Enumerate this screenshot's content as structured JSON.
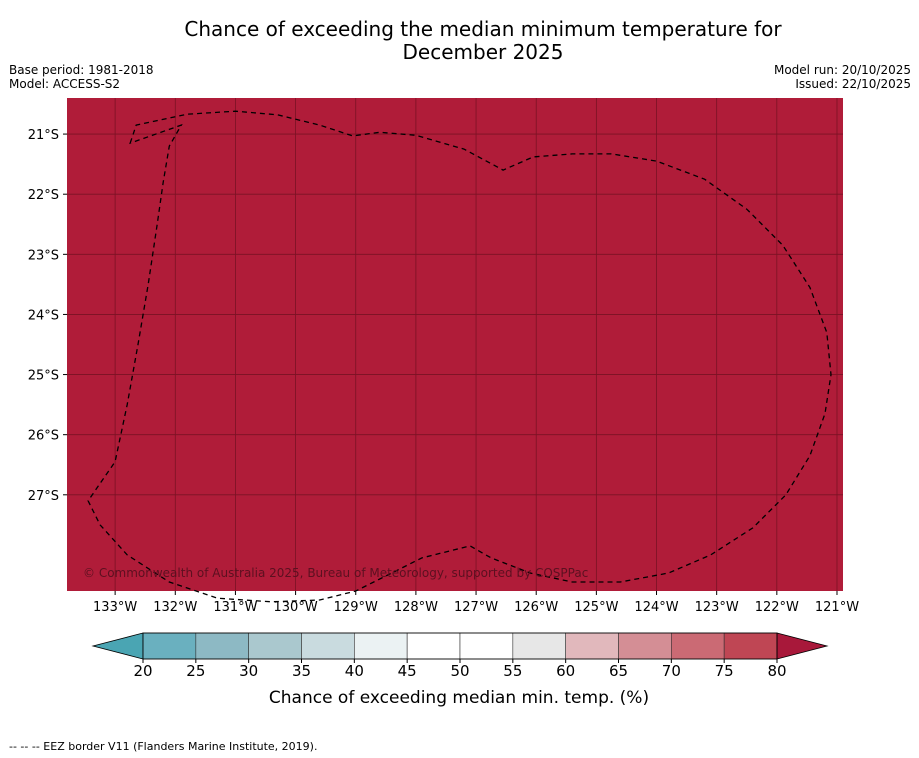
{
  "title_line1": "Chance of exceeding the median minimum temperature for",
  "title_line2": "December 2025",
  "base_period": "Base period: 1981-2018",
  "model": "Model: ACCESS-S2",
  "model_run": "Model run: 20/10/2025",
  "issued": "Issued: 22/10/2025",
  "copyright": "© Commonwealth of Australia 2025, Bureau of Meteorology, supported by COSPPac",
  "footer_note": "--  --  -- EEZ border V11 (Flanders Marine Institute, 2019).",
  "colors": {
    "map_fill": "#b01c39",
    "grid": "#7a1224",
    "scale": [
      "#6ab0bf",
      "#8db9c4",
      "#aac8ce",
      "#c9dbdf",
      "#ebf2f3",
      "#ffffff",
      "#ffffff",
      "#e7e7e7",
      "#e1b8bc",
      "#d48e95",
      "#cb6a74",
      "#bf4654"
    ],
    "low_arrow": "#4aa5b3",
    "high_arrow": "#a8183a"
  },
  "chart_data": {
    "type": "heatmap",
    "title": "Chance of exceeding the median minimum temperature for December 2025",
    "xlabel": "",
    "ylabel": "",
    "xlim": [
      -133.8,
      -120.9
    ],
    "ylim": [
      -28.6,
      -20.4
    ],
    "x_ticks": [
      -133,
      -132,
      -131,
      -130,
      -129,
      -128,
      -127,
      -126,
      -125,
      -124,
      -123,
      -122,
      -121
    ],
    "x_tick_labels": [
      "133°W",
      "132°W",
      "131°W",
      "130°W",
      "129°W",
      "128°W",
      "127°W",
      "126°W",
      "125°W",
      "124°W",
      "123°W",
      "122°W",
      "121°W"
    ],
    "y_ticks": [
      -21,
      -22,
      -23,
      -24,
      -25,
      -26,
      -27
    ],
    "y_tick_labels": [
      "21°S",
      "22°S",
      "23°S",
      "24°S",
      "25°S",
      "26°S",
      "27°S"
    ],
    "field_value_category": ">80",
    "eez_border": [
      [
        -132.75,
        -21.15
      ],
      [
        -132.65,
        -20.85
      ],
      [
        -131.8,
        -20.67
      ],
      [
        -131.0,
        -20.62
      ],
      [
        -130.3,
        -20.68
      ],
      [
        -129.6,
        -20.85
      ],
      [
        -129.05,
        -21.03
      ],
      [
        -128.6,
        -20.97
      ],
      [
        -128.0,
        -21.02
      ],
      [
        -127.2,
        -21.25
      ],
      [
        -126.55,
        -21.6
      ],
      [
        -126.05,
        -21.38
      ],
      [
        -125.4,
        -21.33
      ],
      [
        -124.75,
        -21.33
      ],
      [
        -124.0,
        -21.45
      ],
      [
        -123.2,
        -21.75
      ],
      [
        -122.5,
        -22.25
      ],
      [
        -121.9,
        -22.85
      ],
      [
        -121.45,
        -23.55
      ],
      [
        -121.17,
        -24.3
      ],
      [
        -121.1,
        -25.0
      ],
      [
        -121.2,
        -25.65
      ],
      [
        -121.45,
        -26.35
      ],
      [
        -121.85,
        -27.0
      ],
      [
        -122.4,
        -27.55
      ],
      [
        -123.1,
        -28.0
      ],
      [
        -123.8,
        -28.3
      ],
      [
        -124.6,
        -28.45
      ],
      [
        -125.4,
        -28.45
      ],
      [
        -126.1,
        -28.3
      ],
      [
        -126.75,
        -28.05
      ],
      [
        -127.1,
        -27.85
      ],
      [
        -127.9,
        -28.05
      ],
      [
        -128.5,
        -28.35
      ],
      [
        -129.0,
        -28.6
      ],
      [
        -129.6,
        -28.75
      ],
      [
        -130.4,
        -28.78
      ],
      [
        -131.3,
        -28.72
      ],
      [
        -132.1,
        -28.45
      ],
      [
        -132.8,
        -28.0
      ],
      [
        -133.25,
        -27.5
      ],
      [
        -133.45,
        -27.1
      ],
      [
        -133.0,
        -26.45
      ],
      [
        -132.8,
        -25.5
      ],
      [
        -132.62,
        -24.5
      ],
      [
        -132.45,
        -23.5
      ],
      [
        -132.3,
        -22.5
      ],
      [
        -132.2,
        -21.8
      ],
      [
        -132.1,
        -21.2
      ],
      [
        -131.9,
        -20.85
      ],
      [
        -132.75,
        -21.15
      ]
    ],
    "colorbar": {
      "label": "Chance of exceeding median min. temp. (%)",
      "tick_values": [
        20,
        25,
        30,
        35,
        40,
        45,
        50,
        55,
        60,
        65,
        70,
        75,
        80
      ],
      "tick_labels": [
        "20",
        "25",
        "30",
        "35",
        "40",
        "45",
        "50",
        "55",
        "60",
        "65",
        "70",
        "75",
        "80"
      ],
      "extend": "both"
    }
  }
}
